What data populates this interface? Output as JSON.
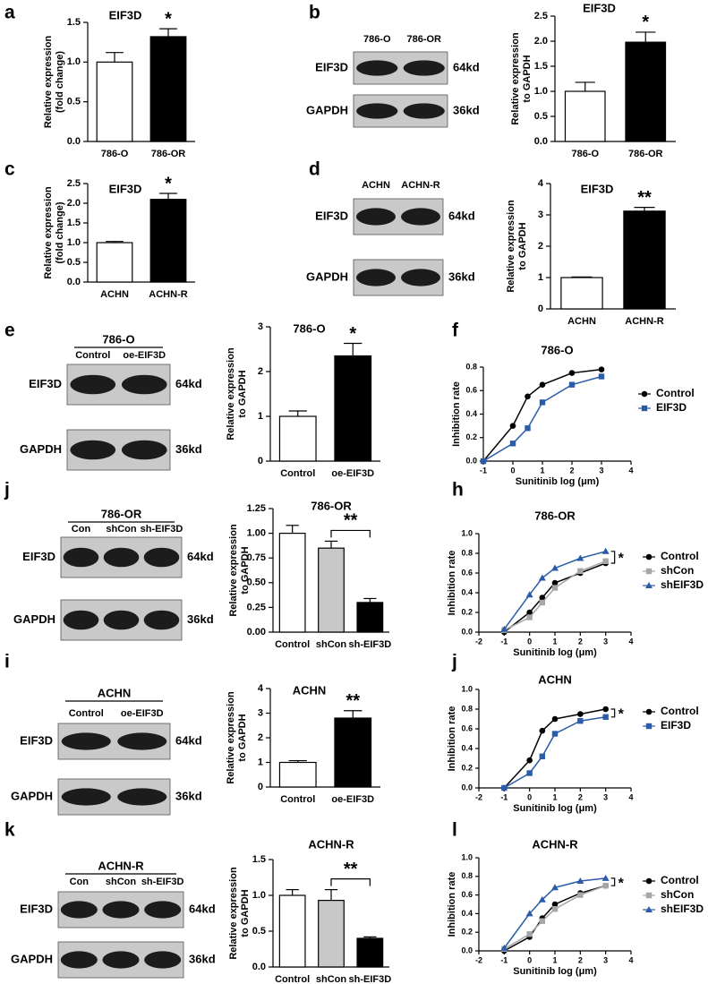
{
  "panel_labels": [
    "a",
    "b",
    "c",
    "d",
    "e",
    "f",
    "j",
    "h",
    "i",
    "j",
    "k",
    "l"
  ],
  "blots": [
    {
      "lanes": [
        "786-O",
        "786-OR"
      ],
      "rows": [
        {
          "protein": "EIF3D",
          "size": "64kd"
        },
        {
          "protein": "GAPDH",
          "size": "36kd"
        }
      ]
    },
    {
      "lanes": [
        "ACHN",
        "ACHN-R"
      ],
      "rows": [
        {
          "protein": "EIF3D",
          "size": "64kd"
        },
        {
          "protein": "GAPDH",
          "size": "36kd"
        }
      ]
    },
    {
      "group": "786-O",
      "lanes": [
        "Control",
        "oe-EIF3D"
      ],
      "rows": [
        {
          "protein": "EIF3D",
          "size": "64kd"
        },
        {
          "protein": "GAPDH",
          "size": "36kd"
        }
      ]
    },
    {
      "group": "786-OR",
      "lanes": [
        "Con",
        "shCon",
        "sh-EIF3D"
      ],
      "rows": [
        {
          "protein": "EIF3D",
          "size": "64kd"
        },
        {
          "protein": "GAPDH",
          "size": "36kd"
        }
      ]
    },
    {
      "group": "ACHN",
      "lanes": [
        "Control",
        "oe-EIF3D"
      ],
      "rows": [
        {
          "protein": "EIF3D",
          "size": "64kd"
        },
        {
          "protein": "GAPDH",
          "size": "36kd"
        }
      ]
    },
    {
      "group": "ACHN-R",
      "lanes": [
        "Con",
        "shCon",
        "sh-EIF3D"
      ],
      "rows": [
        {
          "protein": "EIF3D",
          "size": "64kd"
        },
        {
          "protein": "GAPDH",
          "size": "36kd"
        }
      ]
    }
  ],
  "chart_data": [
    {
      "type": "bar",
      "title": "EIF3D",
      "ylabel": [
        "Relative expression",
        "(fold change)"
      ],
      "categories": [
        "786-O",
        "786-OR"
      ],
      "values": [
        1.0,
        1.32
      ],
      "errors": [
        0.12,
        0.1
      ],
      "colors": [
        "#ffffff",
        "#000000"
      ],
      "ylim": [
        0,
        1.5
      ],
      "yticks": [
        {
          "value": 0,
          "label": "0.0"
        },
        0.5,
        {
          "value": 1,
          "label": "1.0"
        },
        1.5
      ],
      "annotation": "*"
    },
    {
      "type": "bar",
      "title": "EIF3D",
      "ylabel": [
        "Relative expression",
        "to GAPDH"
      ],
      "categories": [
        "786-O",
        "786-OR"
      ],
      "values": [
        1.0,
        1.98
      ],
      "errors": [
        0.18,
        0.2
      ],
      "colors": [
        "#ffffff",
        "#000000"
      ],
      "ylim": [
        0,
        2.5
      ],
      "yticks": [
        {
          "value": 0,
          "label": "0.0"
        },
        0.5,
        {
          "value": 1,
          "label": "1.0"
        },
        1.5,
        {
          "value": 2,
          "label": "2.0"
        },
        2.5
      ],
      "annotation": "*"
    },
    {
      "type": "bar",
      "title": "EIF3D",
      "ylabel": [
        "Relative expression",
        "(fold change)"
      ],
      "categories": [
        "ACHN",
        "ACHN-R"
      ],
      "values": [
        1.0,
        2.1
      ],
      "errors": [
        0.03,
        0.15
      ],
      "colors": [
        "#ffffff",
        "#000000"
      ],
      "ylim": [
        0,
        2.5
      ],
      "yticks": [
        {
          "value": 0,
          "label": "0.0"
        },
        0.5,
        {
          "value": 1,
          "label": "1.0"
        },
        1.5,
        {
          "value": 2,
          "label": "2.0"
        },
        2.5
      ],
      "annotation": "*"
    },
    {
      "type": "bar",
      "title": "EIF3D",
      "ylabel": [
        "Relative expression",
        "to GAPDH"
      ],
      "categories": [
        "ACHN",
        "ACHN-R"
      ],
      "values": [
        1.0,
        3.12
      ],
      "errors": [
        0.02,
        0.12
      ],
      "colors": [
        "#ffffff",
        "#000000"
      ],
      "ylim": [
        0,
        4
      ],
      "yticks": [
        0,
        1,
        2,
        3,
        4
      ],
      "annotation": "**"
    },
    {
      "type": "bar",
      "title": "786-O",
      "ylabel": [
        "Relative expression",
        "to GAPDH"
      ],
      "categories": [
        "Control",
        "oe-EIF3D"
      ],
      "values": [
        1.0,
        2.35
      ],
      "errors": [
        0.12,
        0.28
      ],
      "colors": [
        "#ffffff",
        "#000000"
      ],
      "ylim": [
        0,
        3
      ],
      "yticks": [
        0,
        1,
        2,
        3
      ],
      "annotation": "*"
    },
    {
      "type": "line",
      "title": "786-O",
      "xlabel": "Sunitinib log (μm)",
      "ylabel": "Inhibition rate",
      "x": [
        -1,
        0,
        0.5,
        1,
        2,
        3
      ],
      "xlim": [
        -1,
        4
      ],
      "xticks": [
        -1,
        0,
        1,
        2,
        3,
        4
      ],
      "ylim": [
        0,
        0.8
      ],
      "yticks": [
        {
          "value": 0,
          "label": "0.0"
        },
        0.2,
        0.4,
        0.6,
        0.8
      ],
      "legend": "right",
      "series": [
        {
          "name": "Control",
          "color": "#000000",
          "marker": "circle",
          "values": [
            0.0,
            0.3,
            0.55,
            0.65,
            0.75,
            0.78
          ]
        },
        {
          "name": "EIF3D",
          "color": "#2a5caa",
          "marker": "square",
          "values": [
            0.0,
            0.15,
            0.28,
            0.5,
            0.65,
            0.72
          ]
        }
      ]
    },
    {
      "type": "bar",
      "title": "786-OR",
      "ylabel": [
        "Relative expression",
        "to GAPDH"
      ],
      "categories": [
        "Control",
        "shCon",
        "sh-EIF3D"
      ],
      "values": [
        1.0,
        0.85,
        0.3
      ],
      "errors": [
        0.08,
        0.07,
        0.04
      ],
      "colors": [
        "#ffffff",
        "#c8c8c8",
        "#000000"
      ],
      "ylim": [
        0,
        1.25
      ],
      "yticks": [
        {
          "value": 0,
          "label": "0.00"
        },
        0.25,
        {
          "value": 0.5,
          "label": "0.50"
        },
        0.75,
        {
          "value": 1,
          "label": "1.00"
        },
        1.25
      ],
      "annotation": "**"
    },
    {
      "type": "line",
      "title": "786-OR",
      "xlabel": "Sunitinib log (μm)",
      "ylabel": "Inhibition rate",
      "x": [
        -1,
        0,
        0.5,
        1,
        2,
        3
      ],
      "xlim": [
        -2,
        4
      ],
      "xticks": [
        -2,
        -1,
        0,
        1,
        2,
        3,
        4
      ],
      "ylim": [
        0,
        1
      ],
      "yticks": [
        {
          "value": 0,
          "label": "0.0"
        },
        0.2,
        0.4,
        0.6,
        0.8,
        {
          "value": 1,
          "label": "1.0"
        }
      ],
      "legend": "right",
      "annotation": "*",
      "series": [
        {
          "name": "Control",
          "color": "#000000",
          "marker": "circle",
          "values": [
            0.0,
            0.2,
            0.35,
            0.5,
            0.6,
            0.7
          ]
        },
        {
          "name": "shCon",
          "color": "#a6a6a6",
          "marker": "square",
          "values": [
            0.02,
            0.15,
            0.3,
            0.45,
            0.62,
            0.72
          ]
        },
        {
          "name": "shEIF3D",
          "color": "#2a5caa",
          "marker": "triangle",
          "values": [
            0.03,
            0.38,
            0.55,
            0.65,
            0.75,
            0.82
          ]
        }
      ]
    },
    {
      "type": "bar",
      "title": "ACHN",
      "ylabel": [
        "Relative expression",
        "to GAPDH"
      ],
      "categories": [
        "Control",
        "oe-EIF3D"
      ],
      "values": [
        1.0,
        2.8
      ],
      "errors": [
        0.07,
        0.3
      ],
      "colors": [
        "#ffffff",
        "#000000"
      ],
      "ylim": [
        0,
        4
      ],
      "yticks": [
        0,
        1,
        2,
        3,
        4
      ],
      "annotation": "**"
    },
    {
      "type": "line",
      "title": "ACHN",
      "xlabel": "Sunitinib log (μm)",
      "ylabel": "Inhibition rate",
      "x": [
        -1,
        0,
        0.5,
        1,
        2,
        3
      ],
      "xlim": [
        -2,
        4
      ],
      "xticks": [
        -2,
        -1,
        0,
        1,
        2,
        3,
        4
      ],
      "ylim": [
        0,
        1
      ],
      "yticks": [
        {
          "value": 0,
          "label": "0.0"
        },
        0.2,
        0.4,
        0.6,
        0.8,
        {
          "value": 1,
          "label": "1.0"
        }
      ],
      "legend": "right",
      "annotation": "*",
      "series": [
        {
          "name": "Control",
          "color": "#000000",
          "marker": "circle",
          "values": [
            0.0,
            0.28,
            0.58,
            0.7,
            0.75,
            0.8
          ]
        },
        {
          "name": "EIF3D",
          "color": "#2a5caa",
          "marker": "square",
          "values": [
            0.0,
            0.15,
            0.32,
            0.55,
            0.68,
            0.72
          ]
        }
      ]
    },
    {
      "type": "bar",
      "title": "ACHN-R",
      "ylabel": [
        "Relative expression",
        "to GAPDH"
      ],
      "categories": [
        "Control",
        "shCon",
        "sh-EIF3D"
      ],
      "values": [
        1.0,
        0.93,
        0.4
      ],
      "errors": [
        0.08,
        0.15,
        0.02
      ],
      "colors": [
        "#ffffff",
        "#c8c8c8",
        "#000000"
      ],
      "ylim": [
        0,
        1.5
      ],
      "yticks": [
        {
          "value": 0,
          "label": "0.0"
        },
        0.5,
        {
          "value": 1,
          "label": "1.0"
        },
        1.5
      ],
      "annotation": "**"
    },
    {
      "type": "line",
      "title": "ACHN-R",
      "xlabel": "Sunitinib log (μm)",
      "ylabel": "Inhibition rate",
      "x": [
        -1,
        0,
        0.5,
        1,
        2,
        3
      ],
      "xlim": [
        -2,
        4
      ],
      "xticks": [
        -2,
        -1,
        0,
        1,
        2,
        3,
        4
      ],
      "ylim": [
        0,
        1
      ],
      "yticks": [
        {
          "value": 0,
          "label": "0.0"
        },
        0.2,
        0.4,
        0.6,
        0.8,
        {
          "value": 1,
          "label": "1.0"
        }
      ],
      "legend": "right",
      "annotation": "*",
      "series": [
        {
          "name": "Control",
          "color": "#000000",
          "marker": "circle",
          "values": [
            0.0,
            0.15,
            0.35,
            0.5,
            0.62,
            0.7
          ]
        },
        {
          "name": "shCon",
          "color": "#a6a6a6",
          "marker": "square",
          "values": [
            0.02,
            0.18,
            0.32,
            0.45,
            0.6,
            0.7
          ]
        },
        {
          "name": "shEIF3D",
          "color": "#2a5caa",
          "marker": "triangle",
          "values": [
            0.03,
            0.4,
            0.55,
            0.68,
            0.75,
            0.78
          ]
        }
      ]
    }
  ]
}
